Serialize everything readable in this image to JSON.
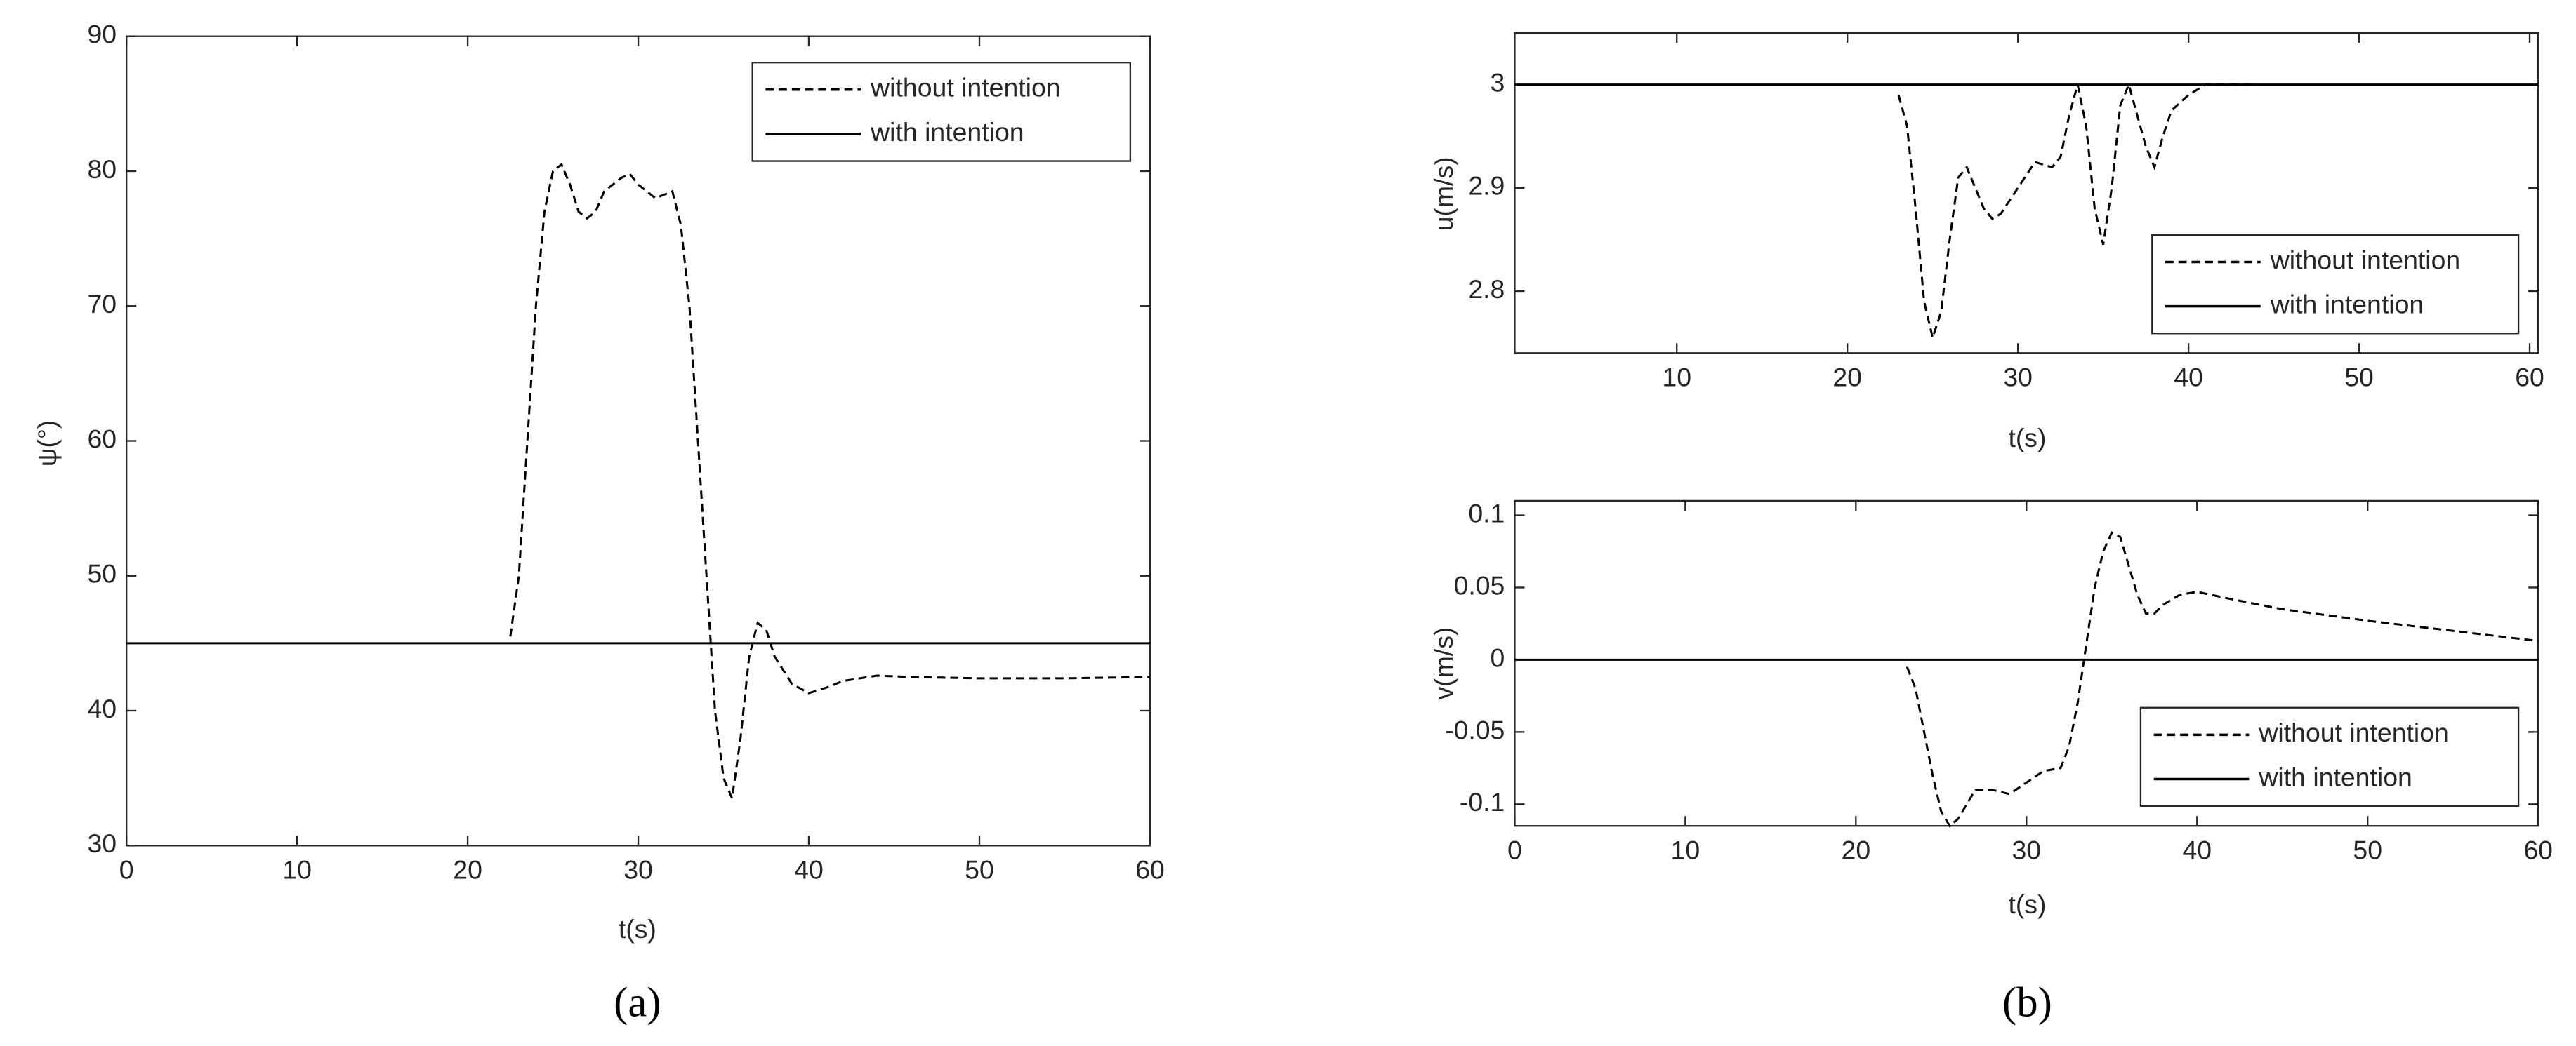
{
  "chart_data": [
    {
      "type": "line",
      "caption": "(a)",
      "xlabel": "t(s)",
      "ylabel": "ψ(°)",
      "xlim": [
        0,
        60
      ],
      "ylim": [
        30,
        90
      ],
      "xticks": [
        0,
        10,
        20,
        30,
        40,
        50,
        60
      ],
      "yticks": [
        30,
        40,
        50,
        60,
        70,
        80,
        90
      ],
      "grid": false,
      "legend": "upper right",
      "series": [
        {
          "name": "without intention",
          "color": "#000000",
          "dashed": true,
          "x": [
            22.5,
            23,
            23.5,
            24,
            24.5,
            25,
            25.5,
            26,
            26.5,
            27,
            27.5,
            28,
            29,
            29.5,
            30,
            31,
            32,
            32.5,
            33,
            33.5,
            34,
            34.5,
            35,
            35.5,
            36,
            36.5,
            37,
            37.5,
            38,
            39,
            40,
            41,
            42,
            44,
            46,
            50,
            55,
            60
          ],
          "values": [
            45.5,
            50,
            60,
            70,
            77,
            80,
            80.5,
            79,
            77,
            76.5,
            77,
            78.5,
            79.5,
            79.8,
            79,
            78,
            78.5,
            76,
            70,
            60,
            50,
            40,
            35,
            33.5,
            38,
            44,
            46.5,
            46,
            44,
            42,
            41.3,
            41.7,
            42.2,
            42.6,
            42.5,
            42.4,
            42.4,
            42.5
          ]
        },
        {
          "name": "with intention",
          "color": "#000000",
          "dashed": false,
          "x": [
            0,
            60
          ],
          "values": [
            45,
            45
          ]
        }
      ]
    },
    {
      "type": "line",
      "caption": "(b)",
      "xlabel": "t(s)",
      "ylabel": "u(m/s)",
      "xlim": [
        0.5,
        60.5
      ],
      "ylim": [
        2.74,
        3.05
      ],
      "xticks": [
        10,
        20,
        30,
        40,
        50,
        60
      ],
      "yticks": [
        2.8,
        2.9,
        3
      ],
      "grid": false,
      "legend": "lower right",
      "series": [
        {
          "name": "without intention",
          "color": "#000000",
          "dashed": true,
          "x": [
            23,
            23.5,
            24,
            24.5,
            25,
            25.5,
            26,
            26.5,
            27,
            27.5,
            28,
            28.5,
            29,
            30,
            31,
            32,
            32.5,
            33,
            33.5,
            34,
            34.5,
            35,
            35.5,
            36,
            36.5,
            37,
            37.5,
            38,
            38.5,
            39,
            40,
            41,
            44
          ],
          "values": [
            2.99,
            2.96,
            2.88,
            2.79,
            2.755,
            2.78,
            2.85,
            2.91,
            2.92,
            2.9,
            2.88,
            2.87,
            2.875,
            2.9,
            2.925,
            2.92,
            2.93,
            2.97,
            3.0,
            2.96,
            2.88,
            2.845,
            2.9,
            2.98,
            3.0,
            2.97,
            2.94,
            2.92,
            2.95,
            2.975,
            2.99,
            3.0,
            3.0
          ]
        },
        {
          "name": "with intention",
          "color": "#000000",
          "dashed": false,
          "x": [
            0.5,
            60.5
          ],
          "values": [
            3,
            3
          ]
        }
      ]
    },
    {
      "type": "line",
      "xlabel": "t(s)",
      "ylabel": "v(m/s)",
      "xlim": [
        0,
        60
      ],
      "ylim": [
        -0.115,
        0.11
      ],
      "xticks": [
        0,
        10,
        20,
        30,
        40,
        50,
        60
      ],
      "yticks": [
        -0.1,
        -0.05,
        0,
        0.05,
        0.1
      ],
      "grid": false,
      "legend": "lower right",
      "series": [
        {
          "name": "without intention",
          "color": "#000000",
          "dashed": true,
          "x": [
            23,
            23.5,
            24,
            24.5,
            25,
            25.5,
            26,
            26.5,
            27,
            28,
            29,
            30,
            31,
            32,
            32.5,
            33,
            33.5,
            34,
            34.5,
            35,
            35.5,
            36,
            36.5,
            37,
            37.5,
            38,
            39,
            40,
            42,
            45,
            50,
            55,
            60
          ],
          "values": [
            -0.005,
            -0.02,
            -0.05,
            -0.08,
            -0.105,
            -0.115,
            -0.11,
            -0.1,
            -0.09,
            -0.09,
            -0.093,
            -0.085,
            -0.077,
            -0.075,
            -0.06,
            -0.03,
            0.01,
            0.05,
            0.075,
            0.088,
            0.085,
            0.065,
            0.045,
            0.032,
            0.032,
            0.038,
            0.045,
            0.047,
            0.042,
            0.035,
            0.027,
            0.02,
            0.013
          ]
        },
        {
          "name": "with intention",
          "color": "#000000",
          "dashed": false,
          "x": [
            0,
            60
          ],
          "values": [
            0,
            0
          ]
        }
      ]
    }
  ]
}
